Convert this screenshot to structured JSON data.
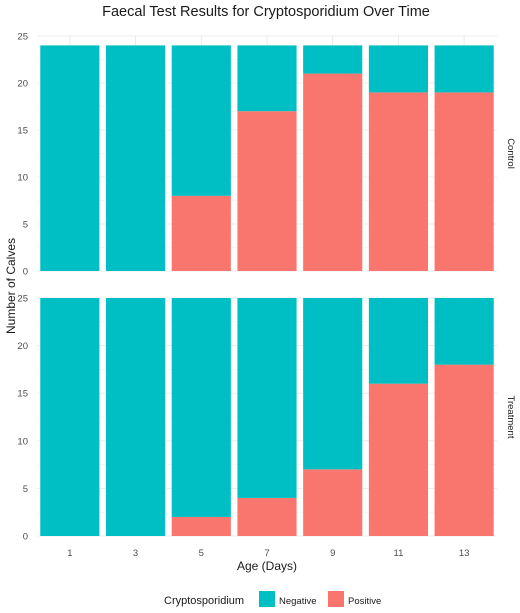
{
  "chart_data": {
    "type": "bar",
    "stacked": true,
    "title": "Faecal Test Results for Cryptosporidium Over Time",
    "xlabel": "Age (Days)",
    "ylabel": "Number of Calves",
    "categories": [
      "1",
      "3",
      "5",
      "7",
      "9",
      "11",
      "13"
    ],
    "ylim": [
      0,
      25
    ],
    "yticks": [
      0,
      5,
      10,
      15,
      20,
      25
    ],
    "grid": true,
    "legend_position": "bottom",
    "legend": {
      "title": "Cryptosporidium",
      "entries": [
        {
          "name": "Negative",
          "color": "#00BFC4"
        },
        {
          "name": "Positive",
          "color": "#F8766D"
        }
      ]
    },
    "facets": [
      {
        "name": "Control",
        "series": [
          {
            "name": "Positive",
            "color": "#F8766D",
            "values": [
              0,
              0,
              8,
              17,
              21,
              19,
              19
            ]
          },
          {
            "name": "Negative",
            "color": "#00BFC4",
            "values": [
              24,
              24,
              16,
              7,
              3,
              5,
              5
            ]
          }
        ]
      },
      {
        "name": "Treatment",
        "series": [
          {
            "name": "Positive",
            "color": "#F8766D",
            "values": [
              0,
              0,
              2,
              4,
              7,
              16,
              18
            ]
          },
          {
            "name": "Negative",
            "color": "#00BFC4",
            "values": [
              25,
              25,
              23,
              21,
              18,
              9,
              7
            ]
          }
        ]
      }
    ]
  }
}
